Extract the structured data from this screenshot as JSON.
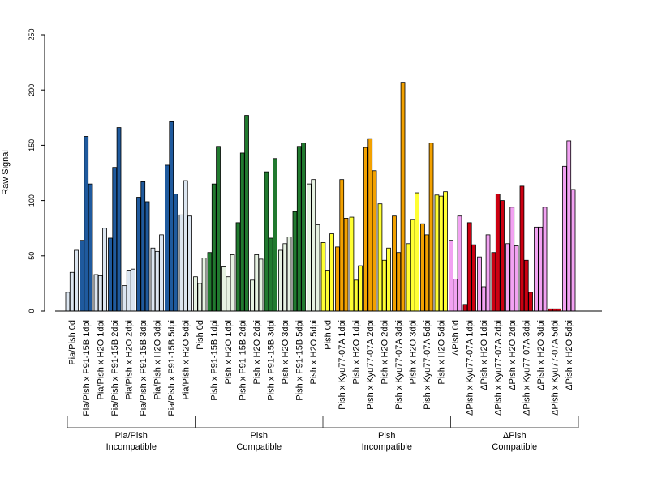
{
  "chart_data": {
    "type": "bar",
    "ylabel": "Raw Signal",
    "xlabel": "",
    "ylim": [
      0,
      250
    ],
    "yticks": [
      0,
      50,
      100,
      150,
      200,
      250
    ],
    "grid": false,
    "colors": {
      "pia_light": "#dce6f1",
      "pia_dark": "#1f5a9e",
      "compat_light": "#e6f2e2",
      "compat_dark": "#217a2f",
      "yellow": "#ffff33",
      "orange": "#f2a100",
      "pink": "#f2a2f2",
      "red": "#cc0011"
    },
    "categories": [
      {
        "label": "Pia/Pish 0d",
        "values": [
          17,
          35,
          55
        ],
        "fill": "pia_light"
      },
      {
        "label": "Pia/Pish x P91-15B 1dpi",
        "values": [
          64,
          158,
          115
        ],
        "fill": "pia_dark"
      },
      {
        "label": "Pia/Pish x H2O 1dpi",
        "values": [
          33,
          32,
          75
        ],
        "fill": "pia_light"
      },
      {
        "label": "Pia/Pish x P91-15B 2dpi",
        "values": [
          66,
          130,
          166
        ],
        "fill": "pia_dark"
      },
      {
        "label": "Pia/Pish x H2O 2dpi",
        "values": [
          23,
          37,
          38
        ],
        "fill": "pia_light"
      },
      {
        "label": "Pia/Pish x P91-15B 3dpi",
        "values": [
          103,
          117,
          99
        ],
        "fill": "pia_dark"
      },
      {
        "label": "Pia/Pish x H2O 3dpi",
        "values": [
          57,
          54,
          69
        ],
        "fill": "pia_light"
      },
      {
        "label": "Pia/Pish x P91-15B 5dpi",
        "values": [
          132,
          172,
          106
        ],
        "fill": "pia_dark"
      },
      {
        "label": "Pia/Pish x H2O 5dpi",
        "values": [
          87,
          118,
          86
        ],
        "fill": "pia_light"
      },
      {
        "label": "Pish 0d",
        "values": [
          31,
          25,
          48
        ],
        "fill": "compat_light"
      },
      {
        "label": "Pish x P91-15B 1dpi",
        "values": [
          53,
          115,
          149
        ],
        "fill": "compat_dark"
      },
      {
        "label": "Pish x H2O 1dpi",
        "values": [
          40,
          31,
          51
        ],
        "fill": "compat_light"
      },
      {
        "label": "Pish x P91-15B 2dpi",
        "values": [
          80,
          143,
          177
        ],
        "fill": "compat_dark"
      },
      {
        "label": "Pish x H2O 2dpi",
        "values": [
          28,
          51,
          47
        ],
        "fill": "compat_light"
      },
      {
        "label": "Pish x P91-15B 3dpi",
        "values": [
          126,
          66,
          138
        ],
        "fill": "compat_dark"
      },
      {
        "label": "Pish x H2O 3dpi",
        "values": [
          55,
          61,
          67
        ],
        "fill": "compat_light"
      },
      {
        "label": "Pish x P91-15B 5dpi",
        "values": [
          90,
          149,
          152
        ],
        "fill": "compat_dark"
      },
      {
        "label": "Pish x H2O 5dpi",
        "values": [
          115,
          119,
          78
        ],
        "fill": "compat_light"
      },
      {
        "label": "Pish 0d",
        "values": [
          62,
          37,
          70
        ],
        "fill": "yellow"
      },
      {
        "label": "Pish x Kyu77-07A 1dpi",
        "values": [
          58,
          119,
          84
        ],
        "fill": "orange"
      },
      {
        "label": "Pish x H2O 1dpi",
        "values": [
          85,
          28,
          41
        ],
        "fill": "yellow"
      },
      {
        "label": "Pish x Kyu77-07A 2dpi",
        "values": [
          148,
          156,
          127
        ],
        "fill": "orange"
      },
      {
        "label": "Pish x H2O 2dpi",
        "values": [
          97,
          46,
          57
        ],
        "fill": "yellow"
      },
      {
        "label": "Pish x Kyu77-07A 3dpi",
        "values": [
          86,
          53,
          207
        ],
        "fill": "orange"
      },
      {
        "label": "Pish x H2O 3dpi",
        "values": [
          61,
          83,
          107
        ],
        "fill": "yellow"
      },
      {
        "label": "Pish x Kyu77-07A 5dpi",
        "values": [
          79,
          69,
          152
        ],
        "fill": "orange"
      },
      {
        "label": "Pish x H2O 5dpi",
        "values": [
          105,
          104,
          108
        ],
        "fill": "yellow"
      },
      {
        "label": "ΔPish 0d",
        "values": [
          64,
          29,
          86
        ],
        "fill": "pink"
      },
      {
        "label": "ΔPish x Kyu77-07A 1dpi",
        "values": [
          6,
          80,
          60
        ],
        "fill": "red"
      },
      {
        "label": "ΔPish x H2O 1dpi",
        "values": [
          49,
          22,
          69
        ],
        "fill": "pink"
      },
      {
        "label": "ΔPish x Kyu77-07A 2dpi",
        "values": [
          53,
          106,
          100
        ],
        "fill": "red"
      },
      {
        "label": "ΔPish x H2O 2dpi",
        "values": [
          61,
          94,
          59
        ],
        "fill": "pink"
      },
      {
        "label": "ΔPish x Kyu77-07A 3dpi",
        "values": [
          113,
          46,
          17
        ],
        "fill": "red"
      },
      {
        "label": "ΔPish x H2O 3dpi",
        "values": [
          76,
          76,
          94
        ],
        "fill": "pink"
      },
      {
        "label": "ΔPish x Kyu77-07A 5dpi",
        "values": [
          2,
          2,
          2
        ],
        "fill": "red"
      },
      {
        "label": "ΔPish x H2O 5dpi",
        "values": [
          131,
          154,
          110
        ],
        "fill": "pink"
      }
    ],
    "groups": [
      {
        "line1": "Pia/Pish",
        "line2": "Incompatible",
        "start": 0,
        "end": 8
      },
      {
        "line1": "Pish",
        "line2": "Compatible",
        "start": 9,
        "end": 17
      },
      {
        "line1": "Pish",
        "line2": "Incompatible",
        "start": 18,
        "end": 26
      },
      {
        "line1": "ΔPish",
        "line2": "Compatible",
        "start": 27,
        "end": 35
      }
    ]
  }
}
